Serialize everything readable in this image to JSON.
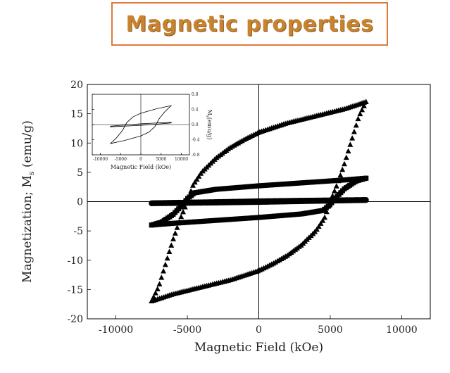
{
  "slide_title": "Magnetic properties",
  "chart_data": [
    {
      "type": "scatter",
      "name": "main",
      "title": "",
      "xlabel": "Magnetic Field (kOe)",
      "ylabel_main": "Magnetization; M",
      "ylabel_sub": "s",
      "ylabel_unit": " (emu/g)",
      "xlim": [
        -12000,
        12000
      ],
      "ylim": [
        -20,
        20
      ],
      "xticks": [
        -10000,
        -5000,
        0,
        5000,
        10000
      ],
      "yticks": [
        -20,
        -15,
        -10,
        -5,
        0,
        5,
        10,
        15,
        20
      ],
      "zero_lines": true,
      "grid": false,
      "series": [
        {
          "marker": "triangle",
          "color": "#000000",
          "loops": [
            {
              "upper": [
                [
                  7500,
                  17
                ],
                [
                  6000,
                  15.8
                ],
                [
                  4000,
                  14.6
                ],
                [
                  2000,
                  13.4
                ],
                [
                  0,
                  11.8
                ],
                [
                  -1000,
                  10.6
                ],
                [
                  -2000,
                  9.2
                ],
                [
                  -3000,
                  7.4
                ],
                [
                  -4000,
                  5
                ],
                [
                  -4600,
                  2.8
                ],
                [
                  -5000,
                  0
                ],
                [
                  -5500,
                  -3
                ],
                [
                  -6000,
                  -6.5
                ],
                [
                  -6500,
                  -10.5
                ],
                [
                  -7000,
                  -14.5
                ],
                [
                  -7500,
                  -17
                ]
              ],
              "lower": [
                [
                  -7500,
                  -17
                ],
                [
                  -6000,
                  -15.8
                ],
                [
                  -4000,
                  -14.6
                ],
                [
                  -2000,
                  -13.4
                ],
                [
                  0,
                  -11.8
                ],
                [
                  1000,
                  -10.6
                ],
                [
                  2000,
                  -9.2
                ],
                [
                  3000,
                  -7.4
                ],
                [
                  4000,
                  -5
                ],
                [
                  4600,
                  -2.8
                ],
                [
                  5000,
                  0
                ],
                [
                  5500,
                  3
                ],
                [
                  6000,
                  6.5
                ],
                [
                  6500,
                  10.5
                ],
                [
                  7000,
                  14.5
                ],
                [
                  7500,
                  17
                ]
              ]
            }
          ]
        },
        {
          "marker": "square",
          "color": "#000000",
          "loops": [
            {
              "upper": [
                [
                  7500,
                  4
                ],
                [
                  6000,
                  3.7
                ],
                [
                  3000,
                  3.2
                ],
                [
                  0,
                  2.7
                ],
                [
                  -3000,
                  2.1
                ],
                [
                  -4500,
                  1.5
                ],
                [
                  -5000,
                  0.5
                ],
                [
                  -5400,
                  -0.7
                ],
                [
                  -6000,
                  -2.2
                ],
                [
                  -6800,
                  -3.5
                ],
                [
                  -7500,
                  -4
                ]
              ],
              "lower": [
                [
                  -7500,
                  -4
                ],
                [
                  -6000,
                  -3.7
                ],
                [
                  -3000,
                  -3.2
                ],
                [
                  0,
                  -2.7
                ],
                [
                  3000,
                  -2.1
                ],
                [
                  4500,
                  -1.5
                ],
                [
                  5000,
                  -0.5
                ],
                [
                  5400,
                  0.7
                ],
                [
                  6000,
                  2.2
                ],
                [
                  6800,
                  3.5
                ],
                [
                  7500,
                  4
                ]
              ]
            }
          ]
        },
        {
          "marker": "circle",
          "color": "#000000",
          "loops": [
            {
              "upper": [
                [
                  7500,
                  0.3
                ],
                [
                  3000,
                  0.18
                ],
                [
                  0,
                  0.08
                ],
                [
                  -3000,
                  -0.06
                ],
                [
                  -7500,
                  -0.25
                ]
              ],
              "lower": [
                [
                  -7500,
                  -0.3
                ],
                [
                  -3000,
                  -0.18
                ],
                [
                  0,
                  -0.08
                ],
                [
                  3000,
                  0.06
                ],
                [
                  7500,
                  0.25
                ]
              ]
            }
          ]
        }
      ]
    },
    {
      "type": "line",
      "name": "inset",
      "title": "",
      "xlabel": "Magnetic Field (kOe)",
      "ylabel_main": "M",
      "ylabel_sub": "s",
      "ylabel_unit": "(emu/g)",
      "xlim": [
        -12000,
        12000
      ],
      "ylim": [
        -0.8,
        0.8
      ],
      "xticks": [
        -10000,
        -5000,
        0,
        5000,
        10000
      ],
      "yticks": [
        -0.8,
        -0.4,
        0.0,
        0.4,
        0.8
      ],
      "series": [
        {
          "color": "#000000",
          "upper": [
            [
              7500,
              0.5
            ],
            [
              4000,
              0.42
            ],
            [
              0,
              0.3
            ],
            [
              -2000,
              0.2
            ],
            [
              -3500,
              0.05
            ],
            [
              -4500,
              -0.15
            ],
            [
              -6000,
              -0.35
            ],
            [
              -7500,
              -0.5
            ]
          ],
          "lower": [
            [
              -7500,
              -0.5
            ],
            [
              -4000,
              -0.42
            ],
            [
              0,
              -0.3
            ],
            [
              2000,
              -0.2
            ],
            [
              3500,
              -0.05
            ],
            [
              4500,
              0.15
            ],
            [
              6000,
              0.35
            ],
            [
              7500,
              0.5
            ]
          ]
        },
        {
          "color": "#000000",
          "upper": [
            [
              7500,
              0.06
            ],
            [
              0,
              0.02
            ],
            [
              -7500,
              -0.04
            ]
          ],
          "lower": [
            [
              -7500,
              -0.06
            ],
            [
              0,
              -0.02
            ],
            [
              7500,
              0.04
            ]
          ]
        }
      ]
    }
  ]
}
